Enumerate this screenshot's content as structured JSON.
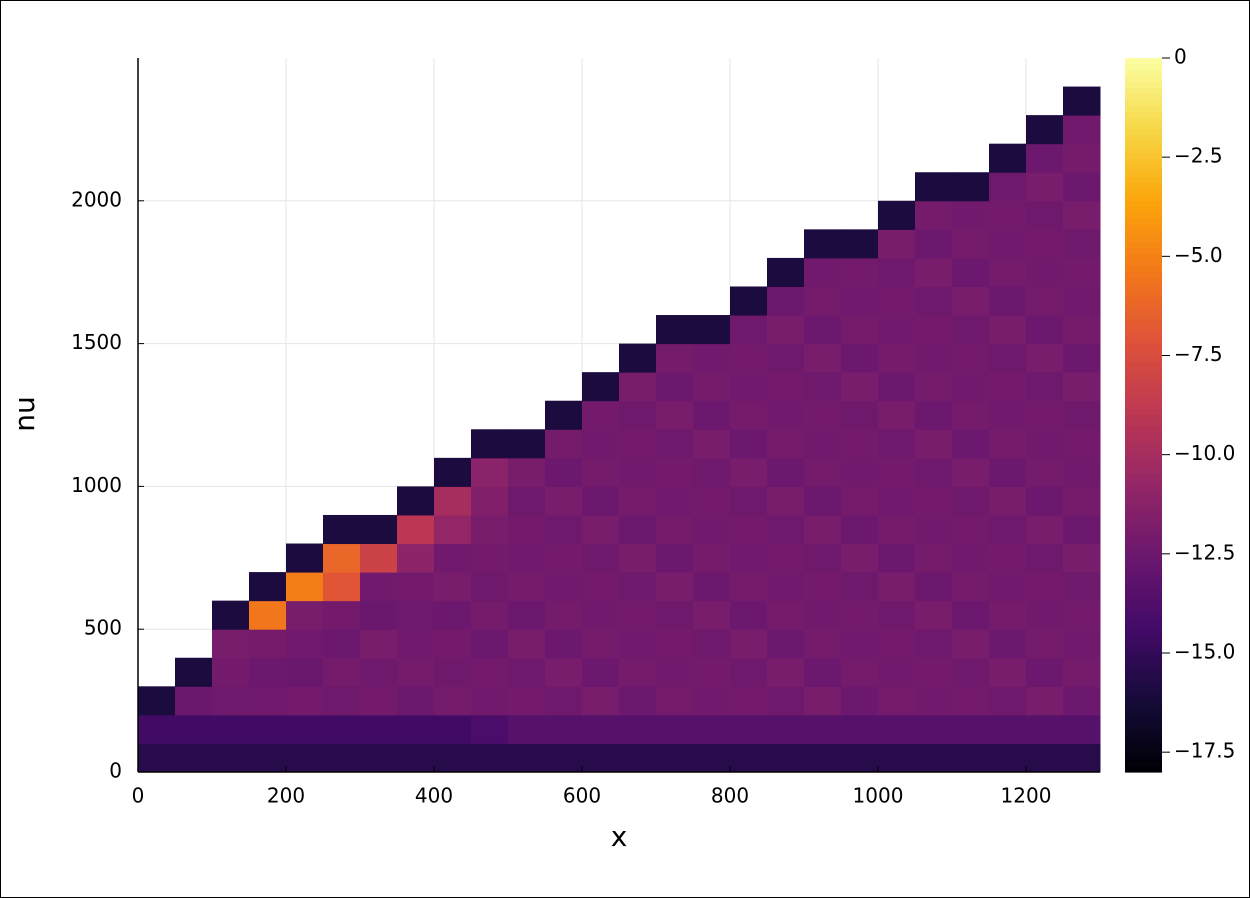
{
  "chart_data": {
    "type": "heatmap",
    "xlabel": "x",
    "ylabel": "nu",
    "xlim": [
      0,
      1300
    ],
    "ylim": [
      0,
      2500
    ],
    "xticks": [
      0,
      200,
      400,
      600,
      800,
      1000,
      1200
    ],
    "yticks": [
      0,
      500,
      1000,
      1500,
      2000
    ],
    "grid": true,
    "colormap": "inferno",
    "clim": [
      -18,
      0
    ],
    "colorbar_ticks": [
      0,
      {
        "value": -2.5,
        "label": "−2.5"
      },
      {
        "value": -5,
        "label": "−5.0"
      },
      {
        "value": -7.5,
        "label": "−7.5"
      },
      {
        "value": -10,
        "label": "−10.0"
      },
      {
        "value": -12.5,
        "label": "−12.5"
      },
      {
        "value": -15,
        "label": "−15.0"
      },
      {
        "value": -17.5,
        "label": "−17.5"
      }
    ],
    "x_bins": [
      0,
      50,
      100,
      150,
      200,
      250,
      300,
      350,
      400,
      450,
      500,
      550,
      600,
      650,
      700,
      750,
      800,
      850,
      900,
      950,
      1000,
      1050,
      1100,
      1150,
      1200,
      1250,
      1300
    ],
    "y_bins": [
      0,
      100,
      200,
      300,
      400,
      500,
      600,
      700,
      800,
      900,
      1000,
      1100,
      1200,
      1300,
      1400,
      1500,
      1600,
      1700,
      1800,
      1900,
      2000,
      2100,
      2200,
      2300,
      2400,
      2500
    ],
    "z": [
      [
        -15.5,
        -14.5,
        -16,
        null,
        null,
        null,
        null,
        null,
        null,
        null,
        null,
        null,
        null,
        null,
        null,
        null,
        null,
        null,
        null,
        null,
        null,
        null,
        null,
        null,
        null
      ],
      [
        -15.5,
        -14.5,
        -12.6,
        -16,
        null,
        null,
        null,
        null,
        null,
        null,
        null,
        null,
        null,
        null,
        null,
        null,
        null,
        null,
        null,
        null,
        null,
        null,
        null,
        null,
        null
      ],
      [
        -15.5,
        -14.5,
        -12.4,
        -12.2,
        -12.0,
        -16,
        null,
        null,
        null,
        null,
        null,
        null,
        null,
        null,
        null,
        null,
        null,
        null,
        null,
        null,
        null,
        null,
        null,
        null,
        null
      ],
      [
        -15.5,
        -14.5,
        -12.3,
        -12.5,
        -12.1,
        -5.5,
        -16,
        null,
        null,
        null,
        null,
        null,
        null,
        null,
        null,
        null,
        null,
        null,
        null,
        null,
        null,
        null,
        null,
        null,
        null
      ],
      [
        -15.5,
        -14.5,
        -12.2,
        -12.6,
        -12.3,
        -12.0,
        -5.2,
        -16,
        null,
        null,
        null,
        null,
        null,
        null,
        null,
        null,
        null,
        null,
        null,
        null,
        null,
        null,
        null,
        null,
        null
      ],
      [
        -15.5,
        -14.5,
        -12.4,
        -12.1,
        -12.5,
        -12.2,
        -7.0,
        -6.2,
        -16,
        null,
        null,
        null,
        null,
        null,
        null,
        null,
        null,
        null,
        null,
        null,
        null,
        null,
        null,
        null,
        null
      ],
      [
        -15.5,
        -14.5,
        -12.2,
        -12.4,
        -12.0,
        -12.6,
        -12.3,
        -8.2,
        -16,
        null,
        null,
        null,
        null,
        null,
        null,
        null,
        null,
        null,
        null,
        null,
        null,
        null,
        null,
        null,
        null
      ],
      [
        -15.5,
        -14.5,
        -12.5,
        -12.1,
        -12.3,
        -12.4,
        -12.2,
        -11.0,
        -9.0,
        -16,
        null,
        null,
        null,
        null,
        null,
        null,
        null,
        null,
        null,
        null,
        null,
        null,
        null,
        null,
        null
      ],
      [
        -15.5,
        -14.5,
        -12.1,
        -12.4,
        -12.2,
        -12.5,
        -12.0,
        -12.3,
        -10.8,
        -10.0,
        -16,
        null,
        null,
        null,
        null,
        null,
        null,
        null,
        null,
        null,
        null,
        null,
        null,
        null,
        null
      ],
      [
        -15.5,
        -14.0,
        -12.3,
        -12.2,
        -12.5,
        -12.1,
        -12.4,
        -12.2,
        -12.0,
        -11.6,
        -11.2,
        -16,
        null,
        null,
        null,
        null,
        null,
        null,
        null,
        null,
        null,
        null,
        null,
        null,
        null
      ],
      [
        -15.5,
        -13.5,
        -12.2,
        -12.4,
        -12.0,
        -12.5,
        -12.1,
        -12.3,
        -12.2,
        -12.4,
        -12.0,
        -16,
        null,
        null,
        null,
        null,
        null,
        null,
        null,
        null,
        null,
        null,
        null,
        null,
        null
      ],
      [
        -15.5,
        -13.5,
        -12.4,
        -12.0,
        -12.5,
        -12.1,
        -12.3,
        -12.2,
        -12.4,
        -12.0,
        -12.5,
        -12.1,
        -16,
        null,
        null,
        null,
        null,
        null,
        null,
        null,
        null,
        null,
        null,
        null,
        null
      ],
      [
        -15.5,
        -13.5,
        -12.0,
        -12.5,
        -12.1,
        -12.3,
        -12.2,
        -12.4,
        -12.0,
        -12.5,
        -12.1,
        -12.3,
        -12.2,
        -16,
        null,
        null,
        null,
        null,
        null,
        null,
        null,
        null,
        null,
        null,
        null
      ],
      [
        -15.5,
        -13.5,
        -12.5,
        -12.1,
        -12.3,
        -12.2,
        -12.4,
        -12.0,
        -12.5,
        -12.1,
        -12.3,
        -12.2,
        -12.4,
        -12.0,
        -16,
        null,
        null,
        null,
        null,
        null,
        null,
        null,
        null,
        null,
        null
      ],
      [
        -15.5,
        -13.5,
        -12.1,
        -12.3,
        -12.2,
        -12.4,
        -12.0,
        -12.5,
        -12.1,
        -12.3,
        -12.2,
        -12.4,
        -12.0,
        -12.5,
        -12.1,
        -16,
        null,
        null,
        null,
        null,
        null,
        null,
        null,
        null,
        null
      ],
      [
        -15.5,
        -13.5,
        -12.3,
        -12.2,
        -12.4,
        -12.0,
        -12.5,
        -12.1,
        -12.3,
        -12.2,
        -12.4,
        -12.0,
        -12.5,
        -12.1,
        -12.3,
        -16,
        null,
        null,
        null,
        null,
        null,
        null,
        null,
        null,
        null
      ],
      [
        -15.5,
        -13.5,
        -12.2,
        -12.4,
        -12.0,
        -12.5,
        -12.1,
        -12.3,
        -12.2,
        -12.4,
        -12.0,
        -12.5,
        -12.1,
        -12.3,
        -12.2,
        -12.4,
        -16,
        null,
        null,
        null,
        null,
        null,
        null,
        null,
        null
      ],
      [
        -15.5,
        -13.5,
        -12.4,
        -12.0,
        -12.5,
        -12.1,
        -12.3,
        -12.2,
        -12.4,
        -12.0,
        -12.5,
        -12.1,
        -12.3,
        -12.2,
        -12.4,
        -12.0,
        -12.5,
        -16,
        null,
        null,
        null,
        null,
        null,
        null,
        null
      ],
      [
        -15.5,
        -13.5,
        -12.0,
        -12.5,
        -12.1,
        -12.3,
        -12.2,
        -12.4,
        -12.0,
        -12.5,
        -12.1,
        -12.3,
        -12.2,
        -12.4,
        -12.0,
        -12.5,
        -12.1,
        -12.3,
        -16,
        null,
        null,
        null,
        null,
        null,
        null
      ],
      [
        -15.5,
        -13.5,
        -12.5,
        -12.1,
        -12.3,
        -12.2,
        -12.4,
        -12.0,
        -12.5,
        -12.1,
        -12.3,
        -12.2,
        -12.4,
        -12.0,
        -12.5,
        -12.1,
        -12.3,
        -12.2,
        -16,
        null,
        null,
        null,
        null,
        null,
        null
      ],
      [
        -15.5,
        -13.5,
        -12.1,
        -12.3,
        -12.2,
        -12.4,
        -12.0,
        -12.5,
        -12.1,
        -12.3,
        -12.2,
        -12.4,
        -12.0,
        -12.5,
        -12.1,
        -12.3,
        -12.2,
        -12.4,
        -12.0,
        -16,
        null,
        null,
        null,
        null,
        null
      ],
      [
        -15.5,
        -13.5,
        -12.3,
        -12.2,
        -12.4,
        -12.0,
        -12.5,
        -12.1,
        -12.3,
        -12.2,
        -12.4,
        -12.0,
        -12.5,
        -12.1,
        -12.3,
        -12.2,
        -12.4,
        -12.0,
        -12.5,
        -12.1,
        -16,
        null,
        null,
        null,
        null
      ],
      [
        -15.5,
        -13.5,
        -12.2,
        -12.4,
        -12.0,
        -12.5,
        -12.1,
        -12.3,
        -12.2,
        -12.4,
        -12.0,
        -12.5,
        -12.1,
        -12.3,
        -12.2,
        -12.4,
        -12.0,
        -12.5,
        -12.1,
        -12.3,
        -16,
        null,
        null,
        null,
        null
      ],
      [
        -15.5,
        -13.5,
        -12.4,
        -12.0,
        -12.5,
        -12.1,
        -12.3,
        -12.2,
        -12.4,
        -12.0,
        -12.5,
        -12.1,
        -12.3,
        -12.2,
        -12.4,
        -12.0,
        -12.5,
        -12.1,
        -12.3,
        -12.2,
        -12.4,
        -16,
        null,
        null,
        null
      ],
      [
        -15.5,
        -13.5,
        -12.0,
        -12.5,
        -12.1,
        -12.3,
        -12.2,
        -12.4,
        -12.0,
        -12.5,
        -12.1,
        -12.3,
        -12.2,
        -12.4,
        -12.0,
        -12.5,
        -12.1,
        -12.3,
        -12.2,
        -12.4,
        -12.0,
        -12.5,
        -16,
        null,
        null
      ],
      [
        -15.5,
        -13.5,
        -12.5,
        -12.1,
        -12.3,
        -12.2,
        -12.4,
        -12.0,
        -12.5,
        -12.1,
        -12.3,
        -12.2,
        -12.4,
        -12.0,
        -12.5,
        -12.1,
        -12.3,
        -12.2,
        -12.4,
        -12.0,
        -12.5,
        -12.1,
        -12.3,
        -16,
        null
      ]
    ]
  }
}
